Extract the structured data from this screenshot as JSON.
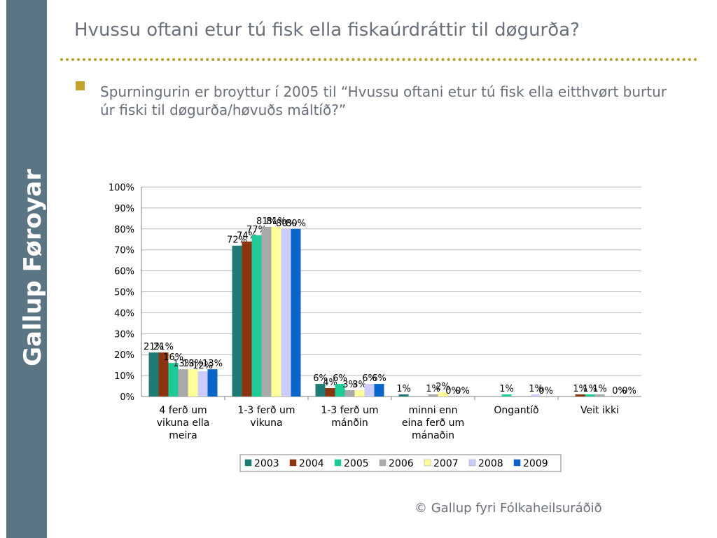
{
  "sidebar": {
    "brand": "Gallup Føroyar"
  },
  "slide": {
    "title": "Hvussu oftani etur tú fisk ella fiskaúrdráttir til døgurða?",
    "bullet": "Spurningurin er broyttur í 2005 til “Hvussu oftani etur tú fisk ella eitthvørt burtur úr fiski til døgurða/høvuðs máltíð?”",
    "copyright": "© Gallup fyri Fólkaheilsuráðið"
  },
  "chart_data": {
    "type": "bar",
    "categories": [
      [
        "4 ferð um",
        "vikuna ella",
        "meira"
      ],
      [
        "1-3 ferð um",
        "vikuna"
      ],
      [
        "1-3 ferð um",
        "mánðin"
      ],
      [
        "minni enn",
        "eina ferð um",
        "mánaðin"
      ],
      [
        "Ongantíð"
      ],
      [
        "Veit ikki"
      ]
    ],
    "yticks": [
      "0%",
      "10%",
      "20%",
      "30%",
      "40%",
      "50%",
      "60%",
      "70%",
      "80%",
      "90%",
      "100%"
    ],
    "ylim": [
      0,
      100
    ],
    "grid": true,
    "legend_position": "bottom",
    "series": [
      {
        "name": "2003",
        "color": "#1f7b74",
        "values": [
          21,
          72,
          6,
          1,
          null,
          null
        ],
        "labels": [
          "21%",
          "72%",
          "6%",
          "1%",
          "",
          ""
        ]
      },
      {
        "name": "2004",
        "color": "#8b3510",
        "values": [
          21,
          74,
          4,
          null,
          null,
          1
        ],
        "labels": [
          "21%",
          "74%",
          "4%",
          "",
          "",
          "1%"
        ]
      },
      {
        "name": "2005",
        "color": "#1ecb96",
        "values": [
          16,
          77,
          6,
          null,
          1,
          1
        ],
        "labels": [
          "16%",
          "77%",
          "6%",
          "",
          "1%",
          "1%"
        ]
      },
      {
        "name": "2006",
        "color": "#a9a9a9",
        "values": [
          13,
          81,
          3,
          1,
          null,
          1
        ],
        "labels": [
          "13%",
          "81%",
          "3%",
          "1%",
          "",
          "1%"
        ]
      },
      {
        "name": "2007",
        "color": "#ffff99",
        "values": [
          13,
          81,
          3,
          2,
          null,
          null
        ],
        "labels": [
          "13%",
          "81%",
          "3%",
          "2%",
          "",
          ""
        ]
      },
      {
        "name": "2008",
        "color": "#ccccff",
        "values": [
          12,
          80,
          6,
          0,
          1,
          0
        ],
        "labels": [
          "12%",
          "80%",
          "6%",
          "0%",
          "1%",
          "0%"
        ]
      },
      {
        "name": "2009",
        "color": "#0b65c8",
        "values": [
          13,
          80,
          6,
          0,
          0,
          0
        ],
        "labels": [
          "13%",
          "80%",
          "6%",
          "0%",
          "0%",
          "0%"
        ]
      }
    ]
  }
}
